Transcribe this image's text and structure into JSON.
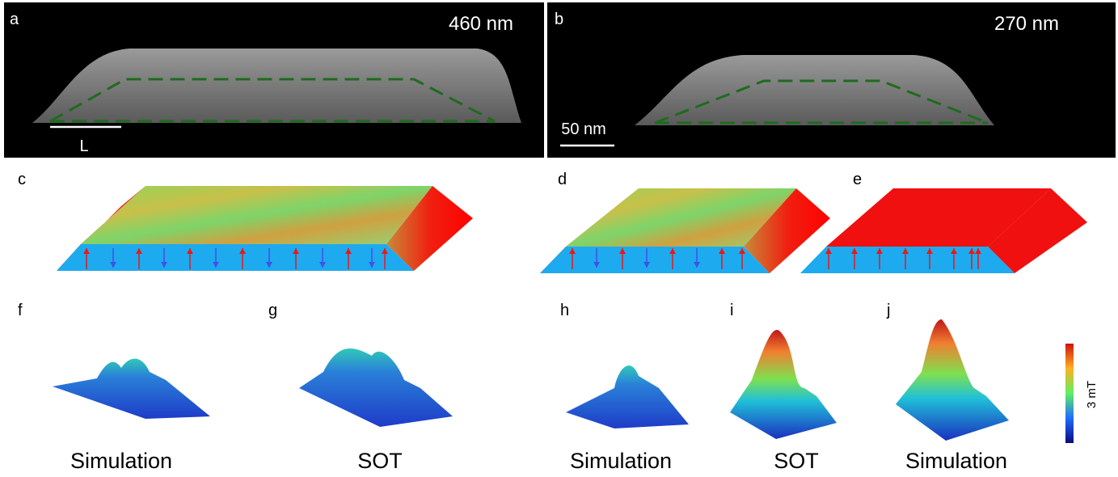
{
  "panels": {
    "a": {
      "label": "a",
      "thickness": "460 nm",
      "scale_label": "L"
    },
    "b": {
      "label": "b",
      "thickness": "270 nm",
      "scale_label": "50 nm"
    },
    "c": {
      "label": "c"
    },
    "d": {
      "label": "d"
    },
    "e": {
      "label": "e"
    },
    "f": {
      "label": "f",
      "caption": "Simulation"
    },
    "g": {
      "label": "g",
      "caption": "SOT"
    },
    "h": {
      "label": "h",
      "caption": "Simulation"
    },
    "i": {
      "label": "i",
      "caption": "SOT"
    },
    "j": {
      "label": "j",
      "caption": "Simulation"
    }
  },
  "colorbar": {
    "label": "3 mT"
  }
}
